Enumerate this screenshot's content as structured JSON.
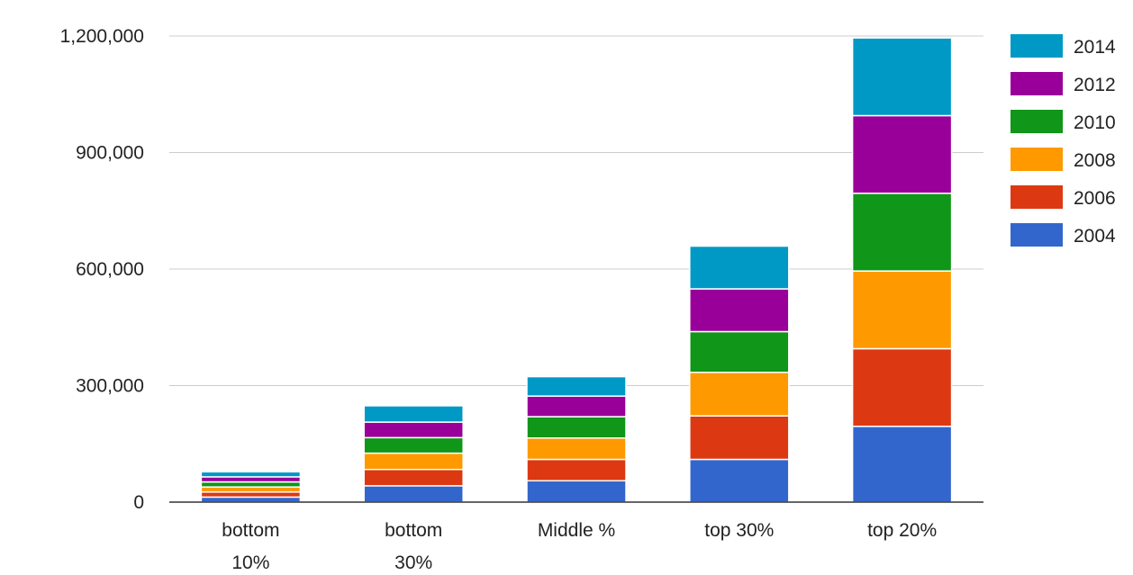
{
  "chart_data": {
    "type": "bar",
    "stacked": true,
    "title": "",
    "xlabel": "",
    "ylabel": "",
    "categories": [
      "bottom 10%",
      "bottom 30%",
      "Middle %",
      "top 30%",
      "top 20%"
    ],
    "ylim": [
      0,
      1200000
    ],
    "y_ticks": [
      0,
      300000,
      600000,
      900000,
      1200000
    ],
    "y_tick_labels": [
      "0",
      "300,000",
      "600,000",
      "900,000",
      "1,200,000"
    ],
    "grid": true,
    "legend_position": "right",
    "series": [
      {
        "name": "2004",
        "color": "#3366cc",
        "values": [
          13000,
          42000,
          55000,
          110000,
          195000
        ]
      },
      {
        "name": "2006",
        "color": "#dc3912",
        "values": [
          13000,
          42000,
          55000,
          112000,
          200000
        ]
      },
      {
        "name": "2008",
        "color": "#ff9900",
        "values": [
          13000,
          42000,
          55000,
          112000,
          200000
        ]
      },
      {
        "name": "2010",
        "color": "#109618",
        "values": [
          13000,
          40000,
          55000,
          105000,
          200000
        ]
      },
      {
        "name": "2012",
        "color": "#990099",
        "values": [
          13000,
          40000,
          53000,
          110000,
          200000
        ]
      },
      {
        "name": "2014",
        "color": "#0099c6",
        "values": [
          13000,
          42000,
          50000,
          110000,
          200000
        ]
      }
    ],
    "legend_order": [
      "2014",
      "2012",
      "2010",
      "2008",
      "2006",
      "2004"
    ]
  }
}
